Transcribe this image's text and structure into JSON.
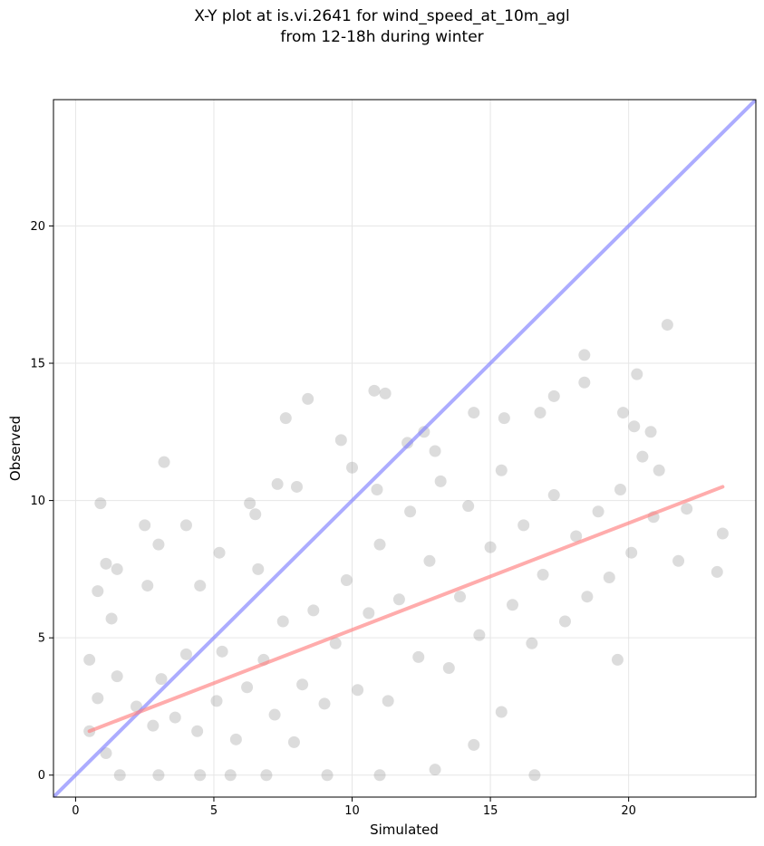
{
  "title": {
    "line1": "X-Y plot at is.vi.2641 for wind_speed_at_10m_agl",
    "line2": "from 12-18h during winter"
  },
  "colors": {
    "points": "#808080",
    "identity_line": "#7f7fff",
    "fit_line": "#ff7f7f",
    "grid": "#e6e6e6"
  },
  "chart_data": {
    "type": "scatter",
    "title": "X-Y plot at is.vi.2641 for wind_speed_at_10m_agl from 12-18h during winter",
    "xlabel": "Simulated",
    "ylabel": "Observed",
    "xlim": [
      -0.8,
      24.6
    ],
    "ylim": [
      -0.8,
      24.6
    ],
    "x_ticks": [
      0,
      5,
      10,
      15,
      20
    ],
    "y_ticks": [
      0,
      5,
      10,
      15,
      20
    ],
    "grid": true,
    "marker": "circle, semi-transparent gray, no edge",
    "sampled_points": [
      [
        0.9,
        9.9
      ],
      [
        3.2,
        11.4
      ],
      [
        8.4,
        13.7
      ],
      [
        7.6,
        13.0
      ],
      [
        10.8,
        14.0
      ],
      [
        11.2,
        13.9
      ],
      [
        21.4,
        16.4
      ],
      [
        18.4,
        15.3
      ],
      [
        20.3,
        14.6
      ],
      [
        18.4,
        14.3
      ],
      [
        17.3,
        13.8
      ],
      [
        12.6,
        12.5
      ],
      [
        14.4,
        13.2
      ],
      [
        15.5,
        13.0
      ],
      [
        16.8,
        13.2
      ],
      [
        19.8,
        13.2
      ],
      [
        20.2,
        12.7
      ],
      [
        20.8,
        12.5
      ],
      [
        21.1,
        11.1
      ],
      [
        23.4,
        8.8
      ],
      [
        23.2,
        7.4
      ],
      [
        21.8,
        7.8
      ],
      [
        19.6,
        4.2
      ],
      [
        16.6,
        0.0
      ],
      [
        14.4,
        1.1
      ],
      [
        15.4,
        2.3
      ],
      [
        2.5,
        9.1
      ],
      [
        4.0,
        9.1
      ],
      [
        3.0,
        8.4
      ],
      [
        5.2,
        8.1
      ],
      [
        6.3,
        9.9
      ],
      [
        1.5,
        7.5
      ],
      [
        1.1,
        7.7
      ],
      [
        0.8,
        6.7
      ],
      [
        2.6,
        6.9
      ],
      [
        4.5,
        6.9
      ],
      [
        6.6,
        7.5
      ],
      [
        1.3,
        5.7
      ],
      [
        0.5,
        4.2
      ],
      [
        0.8,
        2.8
      ],
      [
        0.5,
        1.6
      ],
      [
        1.1,
        0.8
      ],
      [
        1.6,
        0.0
      ],
      [
        3.0,
        0.0
      ],
      [
        4.5,
        0.0
      ],
      [
        5.6,
        0.0
      ],
      [
        6.9,
        0.0
      ],
      [
        9.1,
        0.0
      ],
      [
        11.0,
        0.0
      ],
      [
        13.0,
        0.2
      ],
      [
        1.5,
        3.6
      ],
      [
        2.2,
        2.5
      ],
      [
        2.8,
        1.8
      ],
      [
        3.1,
        3.5
      ],
      [
        3.6,
        2.1
      ],
      [
        4.0,
        4.4
      ],
      [
        4.4,
        1.6
      ],
      [
        5.1,
        2.7
      ],
      [
        5.3,
        4.5
      ],
      [
        5.8,
        1.3
      ],
      [
        6.2,
        3.2
      ],
      [
        6.8,
        4.2
      ],
      [
        7.2,
        2.2
      ],
      [
        7.5,
        5.6
      ],
      [
        7.9,
        1.2
      ],
      [
        8.2,
        3.3
      ],
      [
        8.6,
        6.0
      ],
      [
        9.0,
        2.6
      ],
      [
        9.4,
        4.8
      ],
      [
        9.8,
        7.1
      ],
      [
        10.2,
        3.1
      ],
      [
        10.6,
        5.9
      ],
      [
        11.0,
        8.4
      ],
      [
        11.3,
        2.7
      ],
      [
        11.7,
        6.4
      ],
      [
        12.1,
        9.6
      ],
      [
        12.4,
        4.3
      ],
      [
        12.8,
        7.8
      ],
      [
        13.2,
        10.7
      ],
      [
        13.5,
        3.9
      ],
      [
        13.9,
        6.5
      ],
      [
        14.2,
        9.8
      ],
      [
        14.6,
        5.1
      ],
      [
        15.0,
        8.3
      ],
      [
        15.4,
        11.1
      ],
      [
        15.8,
        6.2
      ],
      [
        16.2,
        9.1
      ],
      [
        16.5,
        4.8
      ],
      [
        16.9,
        7.3
      ],
      [
        17.3,
        10.2
      ],
      [
        17.7,
        5.6
      ],
      [
        18.1,
        8.7
      ],
      [
        18.5,
        6.5
      ],
      [
        18.9,
        9.6
      ],
      [
        19.3,
        7.2
      ],
      [
        19.7,
        10.4
      ],
      [
        20.1,
        8.1
      ],
      [
        20.5,
        11.6
      ],
      [
        20.9,
        9.4
      ],
      [
        22.1,
        9.7
      ],
      [
        9.6,
        12.2
      ],
      [
        10.0,
        11.2
      ],
      [
        12.0,
        12.1
      ],
      [
        13.0,
        11.8
      ],
      [
        8.0,
        10.5
      ],
      [
        7.3,
        10.6
      ],
      [
        10.9,
        10.4
      ],
      [
        6.5,
        9.5
      ]
    ],
    "series": [
      {
        "name": "",
        "type": "line",
        "x": [
          -0.8,
          24.6
        ],
        "y": [
          -0.8,
          24.6
        ]
      },
      {
        "name": "",
        "type": "line",
        "x": [
          0.5,
          23.4
        ],
        "y": [
          1.6,
          10.5
        ]
      }
    ]
  }
}
